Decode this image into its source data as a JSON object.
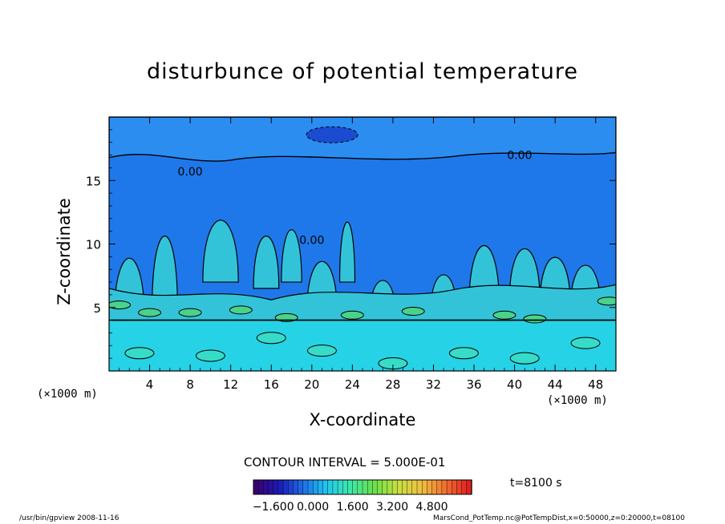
{
  "chart_data": {
    "type": "heatmap",
    "title": "disturbunce of potential temperature",
    "xlabel": "X-coordinate",
    "ylabel": "Z-coordinate",
    "x_unit": "(×1000 m)",
    "y_unit": "(×1000 m)",
    "xlim": [
      0,
      50
    ],
    "ylim": [
      0,
      20
    ],
    "x_ticks": [
      4,
      8,
      12,
      16,
      20,
      24,
      28,
      32,
      36,
      40,
      44,
      48
    ],
    "y_ticks": [
      5,
      10,
      15
    ],
    "contour_labels": [
      "0.00",
      "0.00",
      "0.00"
    ],
    "contour_interval_text": "CONTOUR INTERVAL = 5.000E-01",
    "colorbar": {
      "ticks": [
        "−1.600",
        "0.000",
        "1.600",
        "3.200",
        "4.800"
      ],
      "range": [
        -2.4,
        6.4
      ],
      "colors": [
        "#3a0070",
        "#1a1ab8",
        "#1f6fe6",
        "#22c8f0",
        "#3ee8a8",
        "#6ae04a",
        "#c8e040",
        "#f0c040",
        "#f07030",
        "#e02020"
      ]
    },
    "time_label": "t=8100 s",
    "field_colors": {
      "upper": "#1f78ea",
      "lower": "#26d2e6",
      "mid": "#33c3d9",
      "green": "#4ad28a",
      "dark_blue": "#1b4bd0"
    }
  },
  "footer": {
    "left": "/usr/bin/gpview   2008-11-16",
    "right": "MarsCond_PotTemp.nc@PotTempDist,x=0:50000,z=0:20000,t=08100"
  }
}
